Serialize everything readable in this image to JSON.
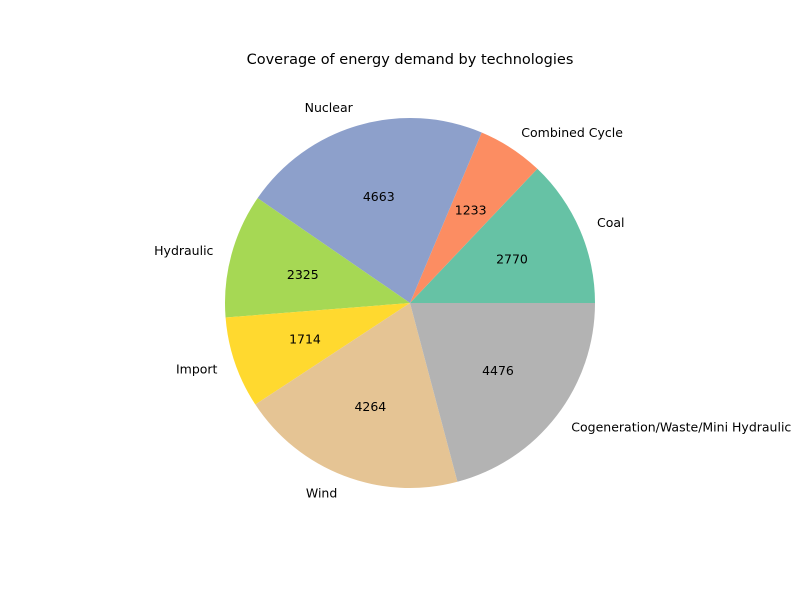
{
  "chart_data": {
    "type": "pie",
    "title": "Coverage of energy demand by technologies",
    "categories": [
      "Coal",
      "Combined Cycle",
      "Nuclear",
      "Hydraulic",
      "Import",
      "Wind",
      "Cogeneration/Waste/Mini Hydraulic"
    ],
    "values": [
      2770,
      1233,
      4663,
      2325,
      1714,
      4264,
      4476
    ],
    "colors": [
      "#66c2a5",
      "#fc8d62",
      "#8da0cb",
      "#a6d854",
      "#ffd92f",
      "#e5c494",
      "#b3b3b3"
    ]
  }
}
